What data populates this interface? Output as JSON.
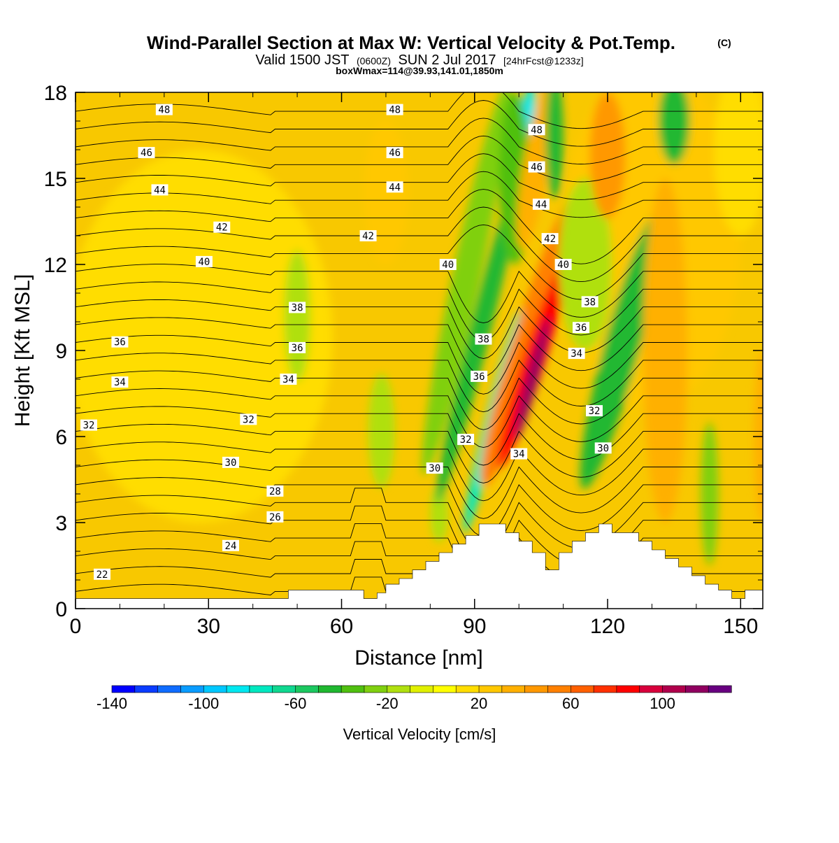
{
  "title": {
    "main": "Wind-Parallel Section at Max W: Vertical Velocity & Pot.Temp.",
    "copyright": "(C)",
    "valid_prefix": "Valid 1500 JST",
    "valid_utc": "(0600Z)",
    "valid_date": "SUN 2 Jul 2017",
    "forecast": "[24hrFcst@1233z]",
    "box_info": "boxWmax=114@39.93,141.01,1850m"
  },
  "colors": {
    "frame": "#000000",
    "terrain": "#ffffff",
    "background_field": "#f8c800"
  },
  "chart_data": {
    "type": "heatmap",
    "xlabel": "Distance [nm]",
    "ylabel": "Height [Kft MSL]",
    "xlim": [
      0,
      155
    ],
    "ylim": [
      0,
      18
    ],
    "xticks": [
      0,
      30,
      60,
      90,
      120,
      150
    ],
    "yticks": [
      0,
      3,
      6,
      9,
      12,
      15,
      18
    ],
    "colorbar": {
      "label": "Vertical Velocity [cm/s]",
      "tick_values": [
        -140,
        -100,
        -60,
        -20,
        20,
        60,
        100
      ],
      "levels_min": -140,
      "levels_max": 130,
      "bin_edges": [
        -140,
        -130,
        -120,
        -110,
        -100,
        -90,
        -80,
        -70,
        -60,
        -50,
        -40,
        -30,
        -20,
        -10,
        0,
        10,
        20,
        30,
        40,
        50,
        60,
        70,
        80,
        90,
        100,
        110,
        120,
        130
      ],
      "colors": [
        "#0000ff",
        "#0a3cff",
        "#0f6cff",
        "#0a9cff",
        "#00c8ff",
        "#00e8f0",
        "#00e8c0",
        "#10d890",
        "#1cc860",
        "#20b830",
        "#50c010",
        "#80d010",
        "#b0e010",
        "#e0f000",
        "#ffff00",
        "#ffdd00",
        "#ffc800",
        "#ffb000",
        "#ff9800",
        "#ff8000",
        "#ff6000",
        "#ff3000",
        "#ff0000",
        "#d8003c",
        "#b0004c",
        "#900060",
        "#680080"
      ]
    },
    "theta_contour_labels": [
      {
        "x": 20,
        "y": 17.4,
        "text": "48"
      },
      {
        "x": 72,
        "y": 17.4,
        "text": "48"
      },
      {
        "x": 104,
        "y": 16.7,
        "text": "48"
      },
      {
        "x": 16,
        "y": 15.9,
        "text": "46"
      },
      {
        "x": 72,
        "y": 15.9,
        "text": "46"
      },
      {
        "x": 104,
        "y": 15.4,
        "text": "46"
      },
      {
        "x": 19,
        "y": 14.6,
        "text": "44"
      },
      {
        "x": 72,
        "y": 14.7,
        "text": "44"
      },
      {
        "x": 105,
        "y": 14.1,
        "text": "44"
      },
      {
        "x": 33,
        "y": 13.3,
        "text": "42"
      },
      {
        "x": 66,
        "y": 13.0,
        "text": "42"
      },
      {
        "x": 107,
        "y": 12.9,
        "text": "42"
      },
      {
        "x": 29,
        "y": 12.1,
        "text": "40"
      },
      {
        "x": 84,
        "y": 12.0,
        "text": "40"
      },
      {
        "x": 110,
        "y": 12.0,
        "text": "40"
      },
      {
        "x": 50,
        "y": 10.5,
        "text": "38"
      },
      {
        "x": 92,
        "y": 9.4,
        "text": "38"
      },
      {
        "x": 116,
        "y": 10.7,
        "text": "38"
      },
      {
        "x": 10,
        "y": 9.3,
        "text": "36"
      },
      {
        "x": 50,
        "y": 9.1,
        "text": "36"
      },
      {
        "x": 91,
        "y": 8.1,
        "text": "36"
      },
      {
        "x": 114,
        "y": 9.8,
        "text": "36"
      },
      {
        "x": 10,
        "y": 7.9,
        "text": "34"
      },
      {
        "x": 48,
        "y": 8.0,
        "text": "34"
      },
      {
        "x": 100,
        "y": 5.4,
        "text": "34"
      },
      {
        "x": 113,
        "y": 8.9,
        "text": "34"
      },
      {
        "x": 3,
        "y": 6.4,
        "text": "32"
      },
      {
        "x": 39,
        "y": 6.6,
        "text": "32"
      },
      {
        "x": 88,
        "y": 5.9,
        "text": "32"
      },
      {
        "x": 117,
        "y": 6.9,
        "text": "32"
      },
      {
        "x": 35,
        "y": 5.1,
        "text": "30"
      },
      {
        "x": 81,
        "y": 4.9,
        "text": "30"
      },
      {
        "x": 119,
        "y": 5.6,
        "text": "30"
      },
      {
        "x": 45,
        "y": 4.1,
        "text": "28"
      },
      {
        "x": 45,
        "y": 3.2,
        "text": "26"
      },
      {
        "x": 35,
        "y": 2.2,
        "text": "24"
      },
      {
        "x": 6,
        "y": 1.2,
        "text": "22"
      }
    ],
    "terrain_profile": {
      "x": [
        0,
        48,
        48,
        65,
        65,
        68,
        68,
        70,
        70,
        73,
        73,
        76,
        76,
        79,
        79,
        82,
        82,
        85,
        85,
        88,
        88,
        91,
        91,
        97,
        97,
        100,
        100,
        103,
        103,
        106,
        106,
        109,
        109,
        112,
        112,
        115,
        115,
        118,
        118,
        121,
        121,
        127,
        127,
        130,
        130,
        133,
        133,
        136,
        136,
        139,
        139,
        142,
        142,
        145,
        145,
        148,
        148,
        151,
        151,
        155
      ],
      "y": [
        0.35,
        0.35,
        0.65,
        0.65,
        0.35,
        0.35,
        0.55,
        0.55,
        0.85,
        0.85,
        1.05,
        1.05,
        1.35,
        1.35,
        1.65,
        1.65,
        1.95,
        1.95,
        2.25,
        2.25,
        2.55,
        2.55,
        2.95,
        2.95,
        2.65,
        2.65,
        2.35,
        2.35,
        1.95,
        1.95,
        1.35,
        1.35,
        1.95,
        1.95,
        2.35,
        2.35,
        2.65,
        2.65,
        2.95,
        2.95,
        2.65,
        2.65,
        2.35,
        2.35,
        2.05,
        2.05,
        1.75,
        1.75,
        1.45,
        1.45,
        1.15,
        1.15,
        0.85,
        0.85,
        0.65,
        0.65,
        0.35,
        0.35,
        0.65,
        0.65
      ]
    }
  }
}
